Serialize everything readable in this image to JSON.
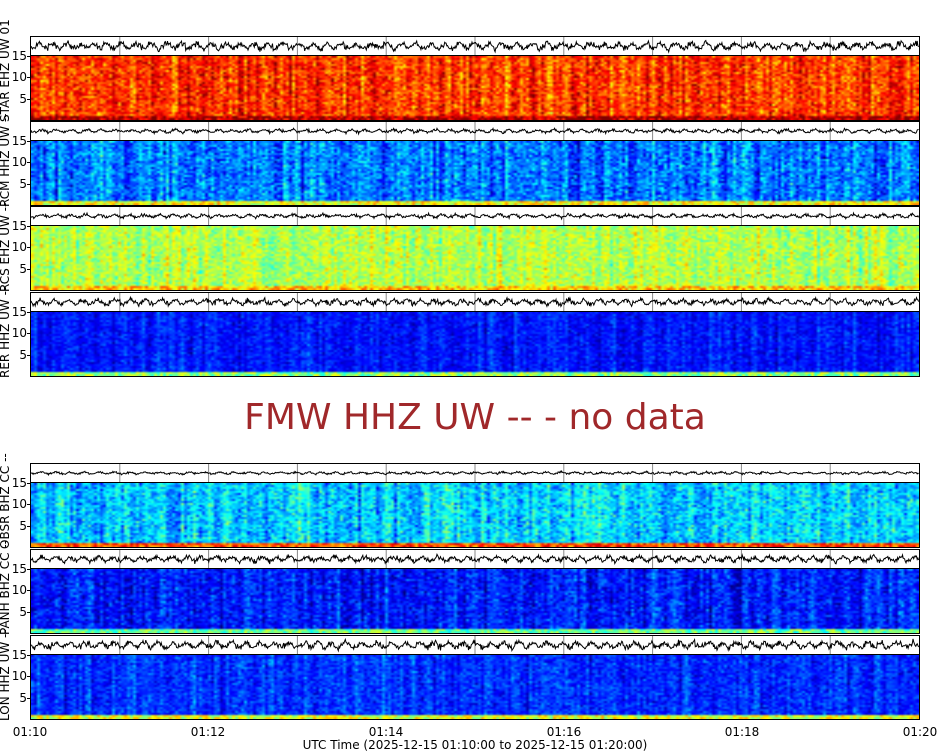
{
  "chart_data": {
    "type": "heatmap",
    "xlabel": "UTC Time (2025-12-15 01:10:00 to 2025-12-15 01:20:00)",
    "x_ticks": [
      "01:10",
      "01:12",
      "01:14",
      "01:16",
      "01:18",
      "01:20"
    ],
    "xlim": [
      "01:10:00",
      "01:20:00"
    ],
    "y_ticks": [
      5,
      10,
      15
    ],
    "ylim": [
      0,
      15
    ],
    "colormap": "jet",
    "panels": [
      {
        "label": "STAR EHZ UW 01",
        "level": "high"
      },
      {
        "label": "RCM HHZ UW --",
        "level": "low"
      },
      {
        "label": "RCS EHZ UW --",
        "level": "medium"
      },
      {
        "label": "RER HHZ UW --",
        "level": "very low"
      },
      {
        "label": "OBSR BHZ CC --",
        "level": "low"
      },
      {
        "label": "PANH BHZ CC --",
        "level": "very low"
      },
      {
        "label": "LON HHZ UW --",
        "level": "very low"
      }
    ],
    "no_data_message": "FMW HHZ UW -- - no data"
  }
}
